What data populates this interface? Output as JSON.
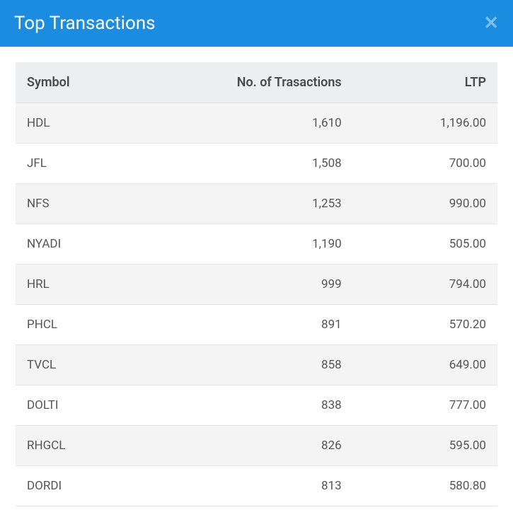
{
  "header": {
    "title": "Top Transactions"
  },
  "table": {
    "columns": [
      "Symbol",
      "No. of Trasactions",
      "LTP"
    ],
    "column_alignments": [
      "left",
      "right",
      "right"
    ],
    "rows": [
      {
        "symbol": "HDL",
        "transactions": "1,610",
        "ltp": "1,196.00"
      },
      {
        "symbol": "JFL",
        "transactions": "1,508",
        "ltp": "700.00"
      },
      {
        "symbol": "NFS",
        "transactions": "1,253",
        "ltp": "990.00"
      },
      {
        "symbol": "NYADI",
        "transactions": "1,190",
        "ltp": "505.00"
      },
      {
        "symbol": "HRL",
        "transactions": "999",
        "ltp": "794.00"
      },
      {
        "symbol": "PHCL",
        "transactions": "891",
        "ltp": "570.20"
      },
      {
        "symbol": "TVCL",
        "transactions": "858",
        "ltp": "649.00"
      },
      {
        "symbol": "DOLTI",
        "transactions": "838",
        "ltp": "777.00"
      },
      {
        "symbol": "RHGCL",
        "transactions": "826",
        "ltp": "595.00"
      },
      {
        "symbol": "DORDI",
        "transactions": "813",
        "ltp": "580.80"
      }
    ],
    "header_bg_color": "#eceeef",
    "row_odd_bg_color": "#f4f4f4",
    "row_even_bg_color": "#ffffff",
    "border_color": "#e5e5e5",
    "text_color": "#555555",
    "header_text_color": "#4a4a4a"
  },
  "colors": {
    "header_bg": "#1b8ce0",
    "header_text": "#ffffff",
    "close_icon": "#7cbfea"
  }
}
